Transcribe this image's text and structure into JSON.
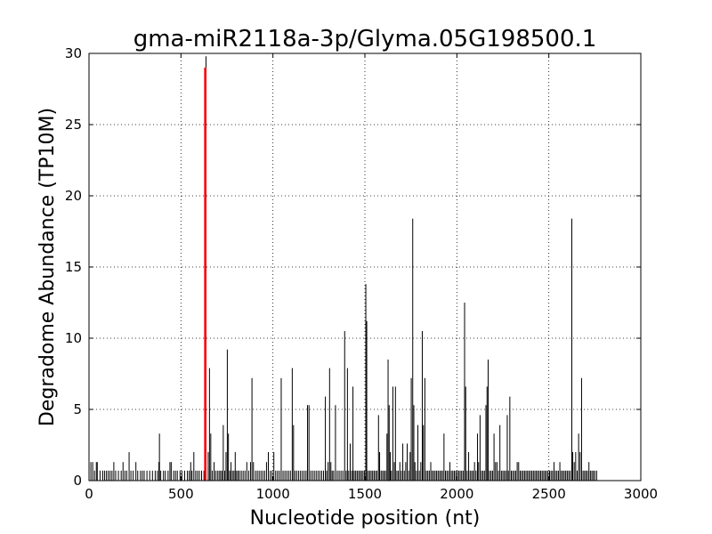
{
  "chart_data": {
    "type": "bar",
    "title": "gma-miR2118a-3p/Glyma.05G198500.1",
    "xlabel": "Nucleotide position (nt)",
    "ylabel": "Degradome Abundance (TP10M)",
    "xlim": [
      0,
      3000
    ],
    "ylim": [
      0,
      30
    ],
    "xticks": [
      0,
      500,
      1000,
      1500,
      2000,
      2500,
      3000
    ],
    "yticks": [
      0,
      5,
      10,
      15,
      20,
      25,
      30
    ],
    "grid": true,
    "colors": {
      "bars": "#000000",
      "highlight": "#ff0000"
    },
    "highlight": {
      "x": 632,
      "y": 29.0
    },
    "points": [
      [
        10,
        1.3
      ],
      [
        20,
        1.3
      ],
      [
        30,
        0.7
      ],
      [
        40,
        1.3
      ],
      [
        45,
        1.3
      ],
      [
        60,
        0.7
      ],
      [
        75,
        0.7
      ],
      [
        85,
        0.7
      ],
      [
        95,
        0.7
      ],
      [
        105,
        0.7
      ],
      [
        115,
        0.7
      ],
      [
        125,
        0.7
      ],
      [
        135,
        1.3
      ],
      [
        145,
        0.7
      ],
      [
        160,
        0.7
      ],
      [
        175,
        0.7
      ],
      [
        185,
        1.3
      ],
      [
        195,
        0.7
      ],
      [
        205,
        0.7
      ],
      [
        218,
        2.0
      ],
      [
        228,
        0.7
      ],
      [
        240,
        0.7
      ],
      [
        255,
        1.3
      ],
      [
        265,
        0.7
      ],
      [
        280,
        0.7
      ],
      [
        290,
        0.7
      ],
      [
        300,
        0.7
      ],
      [
        315,
        0.7
      ],
      [
        330,
        0.7
      ],
      [
        345,
        0.7
      ],
      [
        360,
        0.7
      ],
      [
        372,
        0.7
      ],
      [
        380,
        1.3
      ],
      [
        383,
        3.3
      ],
      [
        390,
        0.7
      ],
      [
        405,
        0.7
      ],
      [
        415,
        0.7
      ],
      [
        430,
        0.7
      ],
      [
        440,
        1.3
      ],
      [
        447,
        1.3
      ],
      [
        460,
        0.7
      ],
      [
        470,
        0.7
      ],
      [
        480,
        0.7
      ],
      [
        495,
        0.7
      ],
      [
        505,
        0.7
      ],
      [
        520,
        0.7
      ],
      [
        535,
        0.7
      ],
      [
        545,
        0.7
      ],
      [
        553,
        1.3
      ],
      [
        560,
        0.7
      ],
      [
        570,
        2.0
      ],
      [
        580,
        0.7
      ],
      [
        590,
        0.7
      ],
      [
        600,
        0.7
      ],
      [
        612,
        0.7
      ],
      [
        625,
        0.7
      ],
      [
        636,
        29.8
      ],
      [
        648,
        2.0
      ],
      [
        655,
        7.9
      ],
      [
        662,
        3.3
      ],
      [
        670,
        0.7
      ],
      [
        680,
        1.3
      ],
      [
        688,
        0.7
      ],
      [
        698,
        0.7
      ],
      [
        707,
        0.7
      ],
      [
        715,
        0.7
      ],
      [
        723,
        0.7
      ],
      [
        730,
        3.9
      ],
      [
        738,
        0.7
      ],
      [
        745,
        2.0
      ],
      [
        752,
        9.2
      ],
      [
        758,
        3.3
      ],
      [
        765,
        0.7
      ],
      [
        772,
        1.3
      ],
      [
        780,
        0.7
      ],
      [
        788,
        0.7
      ],
      [
        795,
        2.0
      ],
      [
        802,
        0.7
      ],
      [
        810,
        0.7
      ],
      [
        818,
        0.7
      ],
      [
        828,
        0.7
      ],
      [
        838,
        0.7
      ],
      [
        848,
        0.7
      ],
      [
        858,
        1.3
      ],
      [
        868,
        0.7
      ],
      [
        878,
        1.3
      ],
      [
        886,
        7.2
      ],
      [
        894,
        1.3
      ],
      [
        905,
        0.7
      ],
      [
        915,
        0.7
      ],
      [
        925,
        0.7
      ],
      [
        935,
        0.7
      ],
      [
        945,
        0.7
      ],
      [
        955,
        0.7
      ],
      [
        965,
        1.3
      ],
      [
        975,
        2.0
      ],
      [
        985,
        0.7
      ],
      [
        995,
        0.7
      ],
      [
        1005,
        2.0
      ],
      [
        1015,
        0.7
      ],
      [
        1025,
        0.7
      ],
      [
        1035,
        0.7
      ],
      [
        1045,
        7.2
      ],
      [
        1055,
        0.7
      ],
      [
        1065,
        0.7
      ],
      [
        1075,
        0.7
      ],
      [
        1085,
        0.7
      ],
      [
        1095,
        0.7
      ],
      [
        1105,
        7.9
      ],
      [
        1112,
        3.9
      ],
      [
        1120,
        0.7
      ],
      [
        1130,
        0.7
      ],
      [
        1140,
        0.7
      ],
      [
        1150,
        0.7
      ],
      [
        1160,
        0.7
      ],
      [
        1170,
        0.7
      ],
      [
        1180,
        0.7
      ],
      [
        1188,
        5.3
      ],
      [
        1196,
        5.3
      ],
      [
        1205,
        0.7
      ],
      [
        1215,
        0.7
      ],
      [
        1225,
        0.7
      ],
      [
        1235,
        0.7
      ],
      [
        1245,
        0.7
      ],
      [
        1255,
        0.7
      ],
      [
        1265,
        0.7
      ],
      [
        1275,
        0.7
      ],
      [
        1285,
        5.9
      ],
      [
        1292,
        0.7
      ],
      [
        1300,
        1.3
      ],
      [
        1308,
        7.9
      ],
      [
        1315,
        1.3
      ],
      [
        1322,
        0.7
      ],
      [
        1330,
        0.7
      ],
      [
        1340,
        5.3
      ],
      [
        1350,
        0.7
      ],
      [
        1360,
        0.7
      ],
      [
        1370,
        0.7
      ],
      [
        1380,
        0.7
      ],
      [
        1390,
        10.5
      ],
      [
        1398,
        0.7
      ],
      [
        1405,
        7.9
      ],
      [
        1412,
        0.7
      ],
      [
        1420,
        2.6
      ],
      [
        1428,
        0.7
      ],
      [
        1435,
        6.6
      ],
      [
        1442,
        0.7
      ],
      [
        1450,
        0.7
      ],
      [
        1458,
        0.7
      ],
      [
        1466,
        0.7
      ],
      [
        1474,
        0.7
      ],
      [
        1482,
        0.7
      ],
      [
        1490,
        0.7
      ],
      [
        1498,
        0.7
      ],
      [
        1505,
        13.8
      ],
      [
        1510,
        11.2
      ],
      [
        1518,
        0.7
      ],
      [
        1526,
        0.7
      ],
      [
        1534,
        0.7
      ],
      [
        1542,
        0.7
      ],
      [
        1550,
        0.7
      ],
      [
        1558,
        0.7
      ],
      [
        1566,
        0.7
      ],
      [
        1574,
        4.6
      ],
      [
        1580,
        2.0
      ],
      [
        1588,
        0.7
      ],
      [
        1596,
        0.7
      ],
      [
        1604,
        0.7
      ],
      [
        1612,
        0.7
      ],
      [
        1620,
        3.3
      ],
      [
        1626,
        8.5
      ],
      [
        1632,
        5.3
      ],
      [
        1638,
        2.0
      ],
      [
        1644,
        0.7
      ],
      [
        1652,
        6.6
      ],
      [
        1660,
        1.3
      ],
      [
        1666,
        6.6
      ],
      [
        1674,
        0.7
      ],
      [
        1682,
        0.7
      ],
      [
        1690,
        1.3
      ],
      [
        1698,
        0.7
      ],
      [
        1706,
        2.6
      ],
      [
        1714,
        0.7
      ],
      [
        1722,
        1.3
      ],
      [
        1730,
        2.6
      ],
      [
        1738,
        0.7
      ],
      [
        1746,
        2.0
      ],
      [
        1752,
        7.2
      ],
      [
        1760,
        18.4
      ],
      [
        1766,
        5.3
      ],
      [
        1772,
        1.3
      ],
      [
        1780,
        0.7
      ],
      [
        1788,
        3.9
      ],
      [
        1796,
        0.7
      ],
      [
        1804,
        1.3
      ],
      [
        1812,
        10.5
      ],
      [
        1818,
        3.9
      ],
      [
        1826,
        7.2
      ],
      [
        1834,
        0.7
      ],
      [
        1842,
        0.7
      ],
      [
        1850,
        0.7
      ],
      [
        1858,
        1.3
      ],
      [
        1866,
        0.7
      ],
      [
        1874,
        0.7
      ],
      [
        1882,
        0.7
      ],
      [
        1890,
        0.7
      ],
      [
        1898,
        0.7
      ],
      [
        1906,
        0.7
      ],
      [
        1914,
        0.7
      ],
      [
        1922,
        0.7
      ],
      [
        1930,
        3.3
      ],
      [
        1938,
        0.7
      ],
      [
        1946,
        0.7
      ],
      [
        1954,
        0.7
      ],
      [
        1962,
        1.3
      ],
      [
        1970,
        0.7
      ],
      [
        1978,
        0.7
      ],
      [
        1986,
        0.7
      ],
      [
        1994,
        0.7
      ],
      [
        2002,
        0.7
      ],
      [
        2010,
        0.7
      ],
      [
        2018,
        0.7
      ],
      [
        2026,
        0.7
      ],
      [
        2034,
        0.7
      ],
      [
        2042,
        12.5
      ],
      [
        2048,
        6.6
      ],
      [
        2056,
        0.7
      ],
      [
        2064,
        2.0
      ],
      [
        2072,
        0.7
      ],
      [
        2080,
        0.7
      ],
      [
        2088,
        0.7
      ],
      [
        2096,
        1.3
      ],
      [
        2104,
        0.7
      ],
      [
        2112,
        3.3
      ],
      [
        2118,
        1.3
      ],
      [
        2126,
        4.6
      ],
      [
        2134,
        0.7
      ],
      [
        2142,
        0.7
      ],
      [
        2150,
        0.7
      ],
      [
        2158,
        5.3
      ],
      [
        2164,
        6.6
      ],
      [
        2170,
        8.5
      ],
      [
        2178,
        0.7
      ],
      [
        2186,
        0.7
      ],
      [
        2194,
        0.7
      ],
      [
        2202,
        3.3
      ],
      [
        2210,
        1.3
      ],
      [
        2218,
        1.3
      ],
      [
        2226,
        0.7
      ],
      [
        2234,
        3.9
      ],
      [
        2242,
        0.7
      ],
      [
        2250,
        0.7
      ],
      [
        2258,
        0.7
      ],
      [
        2266,
        0.7
      ],
      [
        2274,
        4.6
      ],
      [
        2280,
        0.7
      ],
      [
        2288,
        5.9
      ],
      [
        2296,
        0.7
      ],
      [
        2304,
        0.7
      ],
      [
        2312,
        0.7
      ],
      [
        2320,
        0.7
      ],
      [
        2328,
        1.3
      ],
      [
        2336,
        1.3
      ],
      [
        2344,
        0.7
      ],
      [
        2352,
        0.7
      ],
      [
        2360,
        0.7
      ],
      [
        2368,
        0.7
      ],
      [
        2376,
        0.7
      ],
      [
        2384,
        0.7
      ],
      [
        2392,
        0.7
      ],
      [
        2400,
        0.7
      ],
      [
        2408,
        0.7
      ],
      [
        2416,
        0.7
      ],
      [
        2424,
        0.7
      ],
      [
        2432,
        0.7
      ],
      [
        2440,
        0.7
      ],
      [
        2448,
        0.7
      ],
      [
        2456,
        0.7
      ],
      [
        2464,
        0.7
      ],
      [
        2472,
        0.7
      ],
      [
        2480,
        0.7
      ],
      [
        2488,
        0.7
      ],
      [
        2496,
        0.7
      ],
      [
        2504,
        0.7
      ],
      [
        2512,
        0.7
      ],
      [
        2520,
        0.7
      ],
      [
        2528,
        1.3
      ],
      [
        2536,
        0.7
      ],
      [
        2544,
        0.7
      ],
      [
        2552,
        0.7
      ],
      [
        2560,
        1.3
      ],
      [
        2568,
        0.7
      ],
      [
        2576,
        0.7
      ],
      [
        2584,
        0.7
      ],
      [
        2592,
        0.7
      ],
      [
        2600,
        0.7
      ],
      [
        2608,
        0.7
      ],
      [
        2616,
        0.7
      ],
      [
        2625,
        18.4
      ],
      [
        2630,
        2.0
      ],
      [
        2638,
        1.3
      ],
      [
        2646,
        2.0
      ],
      [
        2654,
        0.7
      ],
      [
        2662,
        3.3
      ],
      [
        2670,
        2.0
      ],
      [
        2678,
        7.2
      ],
      [
        2686,
        0.7
      ],
      [
        2694,
        0.7
      ],
      [
        2702,
        0.7
      ],
      [
        2710,
        0.7
      ],
      [
        2718,
        1.3
      ],
      [
        2726,
        0.7
      ],
      [
        2734,
        0.7
      ],
      [
        2742,
        0.7
      ],
      [
        2750,
        0.7
      ],
      [
        2760,
        0.7
      ]
    ]
  }
}
